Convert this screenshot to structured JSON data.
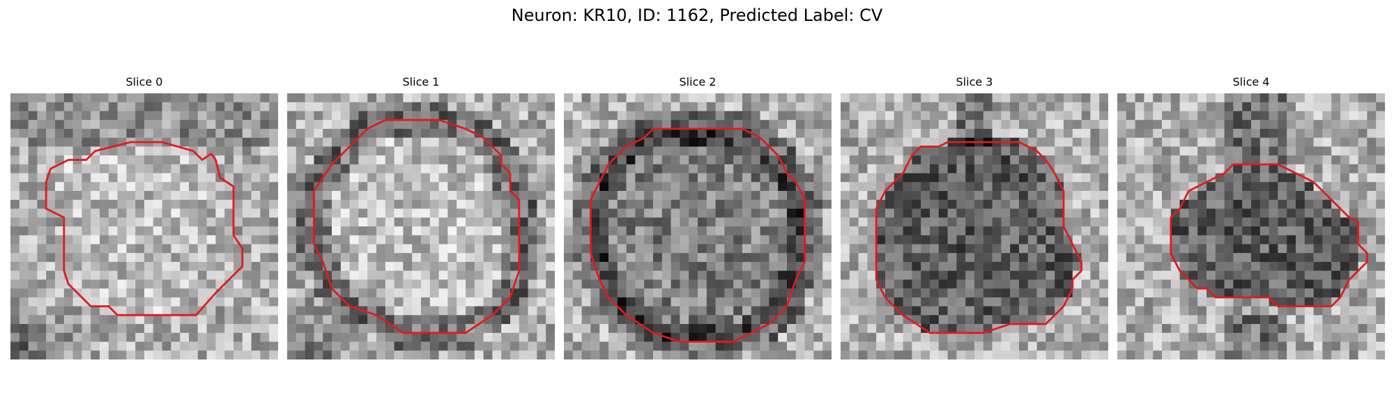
{
  "figure": {
    "title": "Neuron: KR10, ID: 1162, Predicted Label: CV"
  },
  "colors": {
    "outline": "#e31a1c",
    "image": "grayscale"
  },
  "panels": [
    {
      "title": "Slice 0",
      "seed": 11,
      "bright_center": true,
      "dark_rim": false,
      "dark_corner": "bottom-left"
    },
    {
      "title": "Slice 1",
      "seed": 23,
      "bright_center": true,
      "dark_rim": true,
      "dark_corner": "bottom-left"
    },
    {
      "title": "Slice 2",
      "seed": 37,
      "bright_center": false,
      "dark_rim": true,
      "dark_corner": "none"
    },
    {
      "title": "Slice 3",
      "seed": 41,
      "bright_center": false,
      "dark_rim": false,
      "dark_corner": "none"
    },
    {
      "title": "Slice 4",
      "seed": 53,
      "bright_center": false,
      "dark_rim": false,
      "dark_corner": "none"
    }
  ]
}
